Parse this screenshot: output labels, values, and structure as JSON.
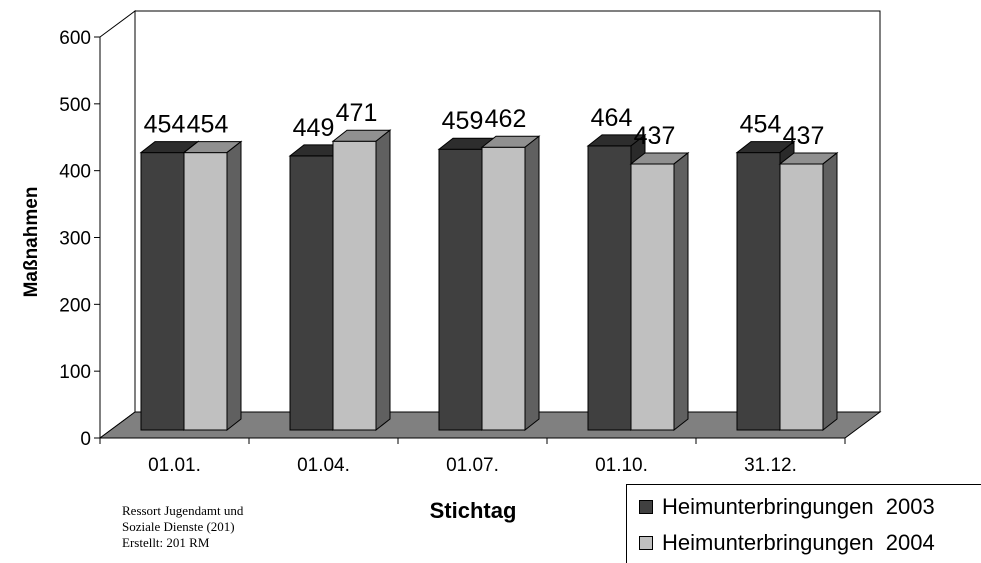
{
  "chart_data": {
    "type": "bar",
    "ylabel": "Maßnahmen",
    "xlabel": "Stichtag",
    "ylim": [
      0,
      600
    ],
    "yticks": [
      0,
      100,
      200,
      300,
      400,
      500,
      600
    ],
    "categories": [
      "01.01.",
      "01.04.",
      "01.07.",
      "01.10.",
      "31.12."
    ],
    "series": [
      {
        "name": "Heimunterbringungen  2003",
        "values": [
          454,
          449,
          459,
          464,
          454
        ],
        "color": "#404040"
      },
      {
        "name": "Heimunterbringungen  2004",
        "values": [
          454,
          471,
          462,
          437,
          437
        ],
        "color": "#c0c0c0"
      }
    ],
    "legend_position": "bottom-right",
    "grid": false
  },
  "footnote": {
    "line1": "Ressort Jugendamt und",
    "line2": "Soziale Dienste (201)",
    "line3": "Erstellt: 201 RM"
  }
}
